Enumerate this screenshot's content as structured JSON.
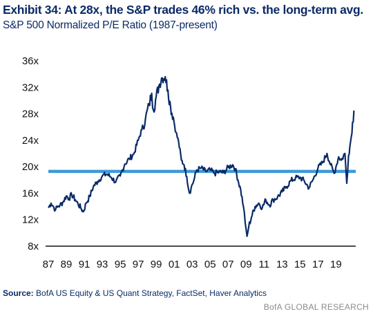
{
  "header": {
    "title": "Exhibit 34: At 28x, the S&P trades 46% rich vs. the long-term avg.",
    "subtitle": "S&P 500 Normalized P/E Ratio (1987-present)"
  },
  "footer": {
    "source_label": "Source:",
    "source_text": "BofA US Equity & US Quant Strategy, FactSet, Haver Analytics",
    "brand": "BofA GLOBAL RESEARCH"
  },
  "colors": {
    "series": "#0a2a66",
    "average_line": "#3a9ad9",
    "title": "#0a2a66"
  },
  "chart_data": {
    "type": "line",
    "title": "S&P 500 Normalized P/E Ratio (1987-present)",
    "xlim": [
      1987,
      2021.2
    ],
    "ylim": [
      8,
      36
    ],
    "x_ticks": [
      1987,
      1989,
      1991,
      1993,
      1995,
      1997,
      1999,
      2001,
      2003,
      2005,
      2007,
      2009,
      2011,
      2013,
      2015,
      2017,
      2019
    ],
    "x_tick_labels": [
      "87",
      "89",
      "91",
      "93",
      "95",
      "97",
      "99",
      "01",
      "03",
      "05",
      "07",
      "09",
      "11",
      "13",
      "15",
      "17",
      "19"
    ],
    "y_ticks": [
      8,
      12,
      16,
      20,
      24,
      28,
      32,
      36
    ],
    "y_tick_labels": [
      "8x",
      "12x",
      "16x",
      "20x",
      "24x",
      "28x",
      "32x",
      "36x"
    ],
    "grid": false,
    "average": 19.3,
    "series": [
      {
        "x": [
          1987.0,
          1987.3,
          1987.6,
          1987.8,
          1988.0,
          1988.3,
          1988.6,
          1989.0,
          1989.3,
          1989.6,
          1990.0,
          1990.3,
          1990.6,
          1990.9,
          1991.2,
          1991.6,
          1992.0,
          1992.5,
          1993.0,
          1993.5,
          1994.0,
          1994.5,
          1995.0,
          1995.5,
          1996.0,
          1996.5,
          1997.0,
          1997.4,
          1997.8,
          1998.2,
          1998.5,
          1998.7,
          1999.0,
          1999.3,
          1999.6,
          2000.0,
          2000.3,
          2000.6,
          2000.9,
          2001.2,
          2001.5,
          2001.8,
          2002.1,
          2002.4,
          2002.7,
          2002.9,
          2003.2,
          2003.5,
          2004.0,
          2004.5,
          2005.0,
          2005.5,
          2006.0,
          2006.5,
          2007.0,
          2007.5,
          2007.8,
          2008.1,
          2008.4,
          2008.7,
          2008.9,
          2009.1,
          2009.3,
          2009.6,
          2010.0,
          2010.4,
          2010.8,
          2011.2,
          2011.6,
          2012.0,
          2012.5,
          2013.0,
          2013.5,
          2014.0,
          2014.5,
          2015.0,
          2015.5,
          2016.0,
          2016.5,
          2017.0,
          2017.5,
          2018.0,
          2018.4,
          2018.8,
          2019.0,
          2019.3,
          2019.6,
          2020.0,
          2020.2,
          2020.4,
          2020.7,
          2021.0
        ],
        "y": [
          13.8,
          14.5,
          13.9,
          13.5,
          13.9,
          14.2,
          14.6,
          15.6,
          15.2,
          15.8,
          15.0,
          14.4,
          13.8,
          13.2,
          14.5,
          15.5,
          17.0,
          17.8,
          18.6,
          18.9,
          18.4,
          17.7,
          18.6,
          20.4,
          21.2,
          21.9,
          24.0,
          25.6,
          27.2,
          29.3,
          31.1,
          28.5,
          30.6,
          32.2,
          33.4,
          33.6,
          31.6,
          29.0,
          27.5,
          25.2,
          23.7,
          21.0,
          20.3,
          18.5,
          16.0,
          16.9,
          18.0,
          19.5,
          19.8,
          19.3,
          19.5,
          19.0,
          19.2,
          19.1,
          19.9,
          20.3,
          19.7,
          18.0,
          16.5,
          14.0,
          11.5,
          9.5,
          11.0,
          12.4,
          14.0,
          14.5,
          13.8,
          15.0,
          14.2,
          15.0,
          15.4,
          16.2,
          17.0,
          17.9,
          18.3,
          18.4,
          17.8,
          16.8,
          18.2,
          19.8,
          20.6,
          22.0,
          20.3,
          19.0,
          20.0,
          21.5,
          21.0,
          22.0,
          17.5,
          21.7,
          24.5,
          28.5
        ]
      }
    ]
  }
}
